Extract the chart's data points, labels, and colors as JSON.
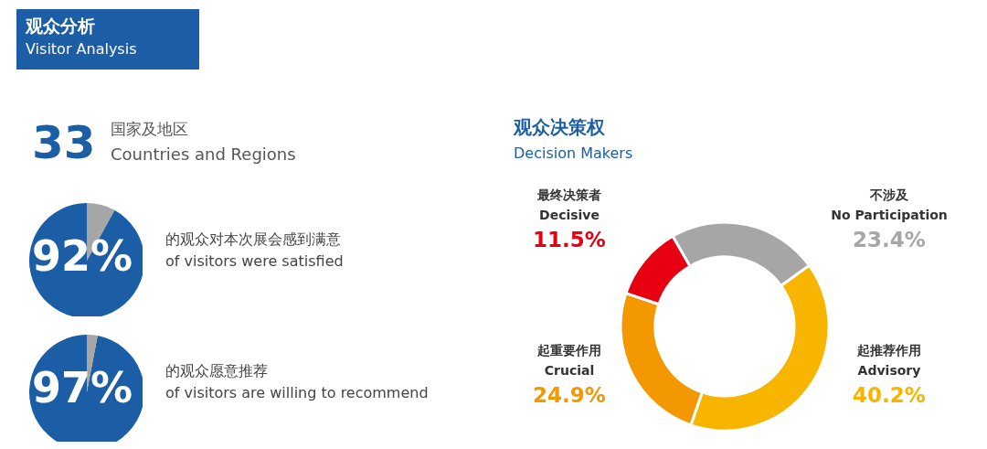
{
  "chart_data": [
    {
      "type": "other",
      "title": "观众分析",
      "subtitle": "Visitor Analysis",
      "annotations": [
        "33",
        "国家及地区",
        "Countries and Regions"
      ]
    },
    {
      "type": "pie",
      "categories": [
        null,
        null
      ],
      "values": [
        92,
        8
      ],
      "colors": [
        "#1b5ea6",
        "#a6a6a6"
      ],
      "value_labels": [
        "92%",
        null
      ],
      "annotations": [
        "的观众对本次展会感到满意",
        "of visitors were satisfied"
      ]
    },
    {
      "type": "pie",
      "categories": [
        null,
        null
      ],
      "values": [
        97,
        3
      ],
      "colors": [
        "#1b5ea6",
        "#a6a6a6"
      ],
      "value_labels": [
        "97%",
        null
      ],
      "annotations": [
        "的观众愿意推荐",
        "of visitors are willing to recommend"
      ]
    },
    {
      "type": "donut",
      "title": "观众决策权",
      "subtitle": "Decision Makers",
      "categories": [
        "不涉及\nNo Participation",
        "起推荐作用\nAdvisory",
        "起重要作用\nCrucial",
        "最终决策者\nDecisive"
      ],
      "values": [
        23.4,
        40.2,
        24.9,
        11.5
      ],
      "colors": [
        "#a6a6a6",
        "#f7b500",
        "#f39800",
        "#e60012"
      ],
      "value_labels": [
        "23.4%",
        "40.2%",
        "24.9%",
        "11.5%"
      ]
    }
  ]
}
